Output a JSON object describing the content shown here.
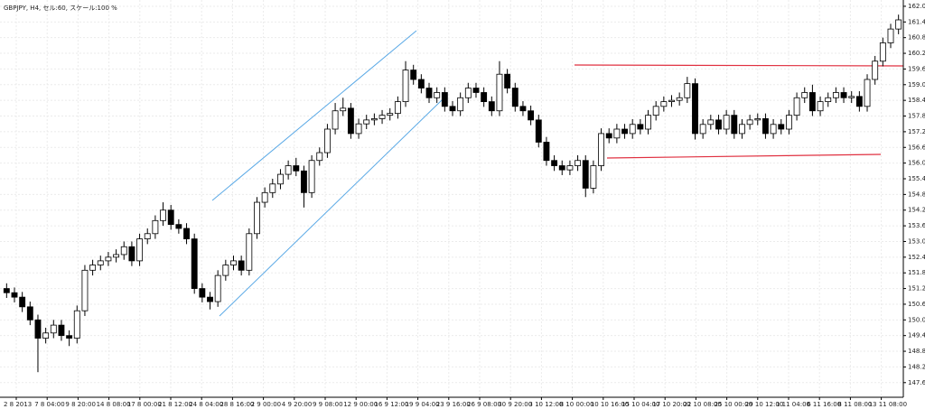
{
  "chart_data": {
    "type": "candlestick",
    "title": "GBPJPY, H4, セル:60, スケール:100 %",
    "x_axis_labels": [
      "2 8 2013",
      "7 8 04:00",
      "9 8 20:00",
      "14 8 08:00",
      "17 8 00:00",
      "21 8 12:00",
      "24 8 04:00",
      "28 8 16:00",
      "2 9 00:00",
      "4 9 20:00",
      "9 9 08:00",
      "12 9 00:00",
      "16 9 12:00",
      "19 9 04:00",
      "23 9 16:00",
      "26 9 08:00",
      "30 9 20:00",
      "3 10 12:00",
      "8 10 00:00",
      "10 10 16:00",
      "15 10 04:00",
      "17 10 20:00",
      "22 10 08:00",
      "25 10 00:00",
      "29 10 12:00",
      "1 11 04:00",
      "6 11 16:00",
      "8 11 08:00",
      "13 11 08:00"
    ],
    "open": [
      151.2,
      151.04,
      150.87,
      150.5,
      150.0,
      149.3,
      149.5,
      149.8,
      149.4,
      149.3,
      150.35,
      151.9,
      152.1,
      152.26,
      152.4,
      152.5,
      152.8,
      152.26,
      153.1,
      153.3,
      153.8,
      154.2,
      153.65,
      153.5,
      153.1,
      151.2,
      150.87,
      150.7,
      151.7,
      152.1,
      152.26,
      151.9,
      153.3,
      154.5,
      154.87,
      155.2,
      155.57,
      155.9,
      155.7,
      154.87,
      156.1,
      156.4,
      157.3,
      158.0,
      158.1,
      157.13,
      157.5,
      157.65,
      157.7,
      157.83,
      157.9,
      158.35,
      159.56,
      159.2,
      158.87,
      158.5,
      158.7,
      158.17,
      158.0,
      158.5,
      158.87,
      158.7,
      158.35,
      158.0,
      159.4,
      158.87,
      158.17,
      158.0,
      157.65,
      156.8,
      156.1,
      155.9,
      155.74,
      155.9,
      156.1,
      155.04,
      155.9,
      157.13,
      156.96,
      157.3,
      157.13,
      157.48,
      157.3,
      157.83,
      158.17,
      158.35,
      158.4,
      158.5,
      159.04,
      157.13,
      157.48,
      157.65,
      157.3,
      157.83,
      157.13,
      157.48,
      157.65,
      157.7,
      157.13,
      157.48,
      157.3,
      157.83,
      158.5,
      158.7,
      158.0,
      158.35,
      158.5,
      158.7,
      158.5,
      158.55,
      158.17,
      159.2,
      159.9,
      160.6,
      161.13
    ],
    "high": [
      151.4,
      151.24,
      151.07,
      150.7,
      150.2,
      149.7,
      150.0,
      150.0,
      149.6,
      150.55,
      152.1,
      152.3,
      152.46,
      152.6,
      152.7,
      153.0,
      153.0,
      153.3,
      153.5,
      154.0,
      154.5,
      154.4,
      153.85,
      153.7,
      153.3,
      151.4,
      151.07,
      151.9,
      152.3,
      152.46,
      152.46,
      153.5,
      154.7,
      155.07,
      155.4,
      155.77,
      156.1,
      156.2,
      155.9,
      156.3,
      156.6,
      157.5,
      158.3,
      158.5,
      158.3,
      157.7,
      157.85,
      157.9,
      158.03,
      158.1,
      158.55,
      159.9,
      159.76,
      159.4,
      159.07,
      158.9,
      158.9,
      158.37,
      158.7,
      159.07,
      159.07,
      158.9,
      158.55,
      159.9,
      159.6,
      159.07,
      158.37,
      158.2,
      157.85,
      157.0,
      156.3,
      156.1,
      156.1,
      156.3,
      156.3,
      156.1,
      157.33,
      157.33,
      157.5,
      157.5,
      157.68,
      157.68,
      158.03,
      158.37,
      158.55,
      158.6,
      158.7,
      159.3,
      159.24,
      157.68,
      157.85,
      157.85,
      158.03,
      158.03,
      157.68,
      157.85,
      157.9,
      157.9,
      157.68,
      157.68,
      158.03,
      158.7,
      158.9,
      159.0,
      158.55,
      158.7,
      158.9,
      158.9,
      158.75,
      158.75,
      159.4,
      160.1,
      160.8,
      161.33,
      161.68
    ],
    "low": [
      150.84,
      150.67,
      150.3,
      149.8,
      148.0,
      149.1,
      149.3,
      149.2,
      149.0,
      149.1,
      150.15,
      151.7,
      151.9,
      152.06,
      152.2,
      152.3,
      152.06,
      152.06,
      152.9,
      153.1,
      153.6,
      153.45,
      153.3,
      152.9,
      151.0,
      150.67,
      150.4,
      150.5,
      151.5,
      151.9,
      151.7,
      151.7,
      153.1,
      154.3,
      154.67,
      155.0,
      155.37,
      155.5,
      154.3,
      154.67,
      155.9,
      156.2,
      157.1,
      157.8,
      156.93,
      156.93,
      157.3,
      157.45,
      157.5,
      157.63,
      157.7,
      158.15,
      159.0,
      158.67,
      158.3,
      158.3,
      157.97,
      157.8,
      157.8,
      158.3,
      158.5,
      158.15,
      157.8,
      157.8,
      158.67,
      157.97,
      157.8,
      157.45,
      156.6,
      155.9,
      155.7,
      155.54,
      155.54,
      155.7,
      154.7,
      154.84,
      155.7,
      156.76,
      156.76,
      156.93,
      156.93,
      157.1,
      157.1,
      157.63,
      157.97,
      158.15,
      158.2,
      158.3,
      156.9,
      156.93,
      157.28,
      157.1,
      157.1,
      156.93,
      156.93,
      157.28,
      157.45,
      156.93,
      156.93,
      157.1,
      157.1,
      157.63,
      158.3,
      157.8,
      157.8,
      158.15,
      158.3,
      158.3,
      158.3,
      157.97,
      157.97,
      159.0,
      159.7,
      160.4,
      160.93
    ],
    "close": [
      151.04,
      150.87,
      150.5,
      150.0,
      149.3,
      149.5,
      149.8,
      149.4,
      149.3,
      150.35,
      151.9,
      152.1,
      152.26,
      152.4,
      152.5,
      152.8,
      152.26,
      153.1,
      153.3,
      153.8,
      154.2,
      153.65,
      153.5,
      153.1,
      151.2,
      150.87,
      150.7,
      151.7,
      152.1,
      152.26,
      151.9,
      153.3,
      154.5,
      154.87,
      155.2,
      155.57,
      155.9,
      155.7,
      154.87,
      156.1,
      156.4,
      157.3,
      158.0,
      158.1,
      157.13,
      157.5,
      157.65,
      157.7,
      157.83,
      157.9,
      158.35,
      159.56,
      159.2,
      158.87,
      158.5,
      158.7,
      158.17,
      158.0,
      158.5,
      158.87,
      158.7,
      158.35,
      158.0,
      159.4,
      158.87,
      158.17,
      158.0,
      157.65,
      156.8,
      156.1,
      155.9,
      155.74,
      155.9,
      156.1,
      155.04,
      155.9,
      157.13,
      156.96,
      157.3,
      157.13,
      157.48,
      157.3,
      157.83,
      158.17,
      158.35,
      158.4,
      158.5,
      159.04,
      157.13,
      157.48,
      157.65,
      157.3,
      157.83,
      157.13,
      157.48,
      157.65,
      157.7,
      157.13,
      157.48,
      157.3,
      157.83,
      158.5,
      158.7,
      158.0,
      158.35,
      158.5,
      158.7,
      158.5,
      158.55,
      158.17,
      159.2,
      159.9,
      160.6,
      161.13,
      161.48
    ],
    "ylim": [
      147.04,
      162.24
    ],
    "yticks": [
      {
        "value": 162,
        "label": "162.00"
      },
      {
        "value": 161.4,
        "label": "161.40"
      },
      {
        "value": 160.8,
        "label": "160.80"
      },
      {
        "value": 160.2,
        "label": "160.20"
      },
      {
        "value": 159.6,
        "label": "159.60"
      },
      {
        "value": 159,
        "label": "159.00"
      },
      {
        "value": 158.4,
        "label": "158.40"
      },
      {
        "value": 157.8,
        "label": "157.80"
      },
      {
        "value": 157.2,
        "label": "157.20"
      },
      {
        "value": 156.6,
        "label": "156.60"
      },
      {
        "value": 156,
        "label": "156.00"
      },
      {
        "value": 155.4,
        "label": "155.40"
      },
      {
        "value": 154.8,
        "label": "154.80"
      },
      {
        "value": 154.2,
        "label": "154.20"
      },
      {
        "value": 153.6,
        "label": "153.60"
      },
      {
        "value": 153,
        "label": "153.00"
      },
      {
        "value": 152.4,
        "label": "152.40"
      },
      {
        "value": 151.8,
        "label": "151.80"
      },
      {
        "value": 151.2,
        "label": "151.20"
      },
      {
        "value": 150.6,
        "label": "150.60"
      },
      {
        "value": 150,
        "label": "150.00"
      },
      {
        "value": 149.4,
        "label": "149.40"
      },
      {
        "value": 148.8,
        "label": "148.80"
      },
      {
        "value": 148.2,
        "label": "148.20"
      },
      {
        "value": 147.6,
        "label": "147.60"
      }
    ],
    "grid": true,
    "up_color": "#ffffff",
    "down_color": "#000000"
  }
}
